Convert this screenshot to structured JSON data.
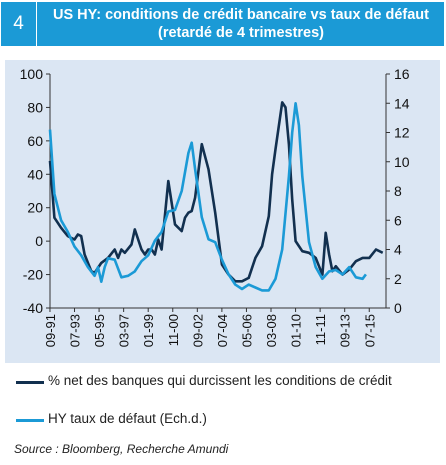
{
  "header": {
    "number": "4",
    "title": "US HY: conditions de crédit bancaire vs taux de défaut (retardé de 4 trimestres)"
  },
  "source": "Source : Bloomberg, Recherche Amundi",
  "chart_data": {
    "type": "line",
    "title": "US HY: conditions de crédit bancaire vs taux de défaut (retardé de 4 trimestres)",
    "xlabel": "",
    "ylabel": "",
    "x_ticks": [
      "09-91",
      "07-93",
      "05-95",
      "03-97",
      "01-99",
      "11-00",
      "09-02",
      "07-04",
      "05-06",
      "03-08",
      "01-10",
      "11-11",
      "09-13",
      "07-15"
    ],
    "x_range": [
      1991.67,
      2016.75
    ],
    "y_left": {
      "ticks": [
        100,
        80,
        60,
        40,
        20,
        0,
        -20,
        -40
      ],
      "range": [
        -40,
        100
      ]
    },
    "y_right": {
      "ticks": [
        16,
        14,
        12,
        10,
        8,
        6,
        4,
        2,
        0
      ],
      "range": [
        0,
        16
      ]
    },
    "grid": false,
    "legend_position": "bottom",
    "colors": {
      "series1": "#12304f",
      "series2": "#1b9ad6",
      "header": "#1b9ad6",
      "plot_bg": "#dbe6f3"
    },
    "series": [
      {
        "name": "% net des banques qui durcissent les conditions de crédit",
        "axis": "left",
        "color": "#12304f",
        "x": [
          1991.67,
          1992.0,
          1992.5,
          1993.0,
          1993.5,
          1993.75,
          1994.0,
          1994.25,
          1994.75,
          1995.0,
          1995.5,
          1996.0,
          1996.5,
          1996.75,
          1997.0,
          1997.25,
          1997.75,
          1998.0,
          1998.5,
          1998.75,
          1999.0,
          1999.25,
          1999.5,
          1999.75,
          2000.0,
          2000.5,
          2001.0,
          2001.5,
          2001.75,
          2002.0,
          2002.25,
          2002.5,
          2003.0,
          2003.5,
          2004.0,
          2004.5,
          2005.0,
          2005.5,
          2006.0,
          2006.5,
          2007.0,
          2007.5,
          2008.0,
          2008.25,
          2008.5,
          2009.0,
          2009.25,
          2009.5,
          2009.75,
          2010.0,
          2010.5,
          2011.0,
          2011.5,
          2011.75,
          2012.0,
          2012.25,
          2012.5,
          2012.75,
          2013.0,
          2013.5,
          2014.0,
          2014.5,
          2015.0,
          2015.5,
          2016.0,
          2016.5
        ],
        "values": [
          48,
          14,
          8,
          3,
          1,
          4,
          3,
          -8,
          -18,
          -19,
          -13,
          -10,
          -5,
          -10,
          -5,
          -7,
          -2,
          7,
          -5,
          -8,
          -5,
          -5,
          -8,
          1,
          -5,
          36,
          10,
          6,
          14,
          17,
          18,
          26,
          58,
          43,
          17,
          -14,
          -20,
          -24,
          -24,
          -22,
          -10,
          -3,
          15,
          40,
          55,
          83,
          80,
          58,
          25,
          0,
          -6,
          -7,
          -10,
          -15,
          -20,
          5,
          -8,
          -18,
          -15,
          -20,
          -17,
          -12,
          -10,
          -10,
          -5,
          -7
        ]
      },
      {
        "name": "HY taux de défaut (Ech.d.)",
        "axis": "right",
        "color": "#1b9ad6",
        "x": [
          1991.67,
          1992.0,
          1992.5,
          1993.0,
          1993.5,
          1994.0,
          1994.5,
          1995.0,
          1995.25,
          1995.5,
          1995.75,
          1996.0,
          1996.5,
          1997.0,
          1997.5,
          1998.0,
          1998.5,
          1999.0,
          1999.5,
          2000.0,
          2000.5,
          2001.0,
          2001.5,
          2002.0,
          2002.25,
          2002.5,
          2003.0,
          2003.5,
          2004.0,
          2004.5,
          2005.0,
          2005.5,
          2006.0,
          2006.5,
          2007.0,
          2007.5,
          2008.0,
          2008.5,
          2009.0,
          2009.5,
          2009.75,
          2010.0,
          2010.25,
          2010.5,
          2011.0,
          2011.5,
          2012.0,
          2012.5,
          2013.0,
          2013.5,
          2014.0,
          2014.5,
          2015.0,
          2015.25
        ],
        "values": [
          12.2,
          7.8,
          6,
          5.2,
          4.2,
          3.6,
          2.8,
          2.2,
          2.8,
          1.8,
          2.8,
          3.4,
          3.3,
          2.1,
          2.2,
          2.5,
          3.2,
          3.6,
          4.6,
          5.2,
          6.6,
          6.7,
          8,
          10.6,
          11.3,
          9.5,
          6.2,
          4.7,
          4.5,
          3.3,
          2.3,
          1.6,
          1.3,
          1.6,
          1.4,
          1.2,
          1.2,
          2,
          4,
          9,
          12,
          14,
          12.5,
          9,
          4.5,
          2.8,
          2,
          2.5,
          2.6,
          2.3,
          2.8,
          2.1,
          2,
          2.3
        ]
      }
    ]
  }
}
